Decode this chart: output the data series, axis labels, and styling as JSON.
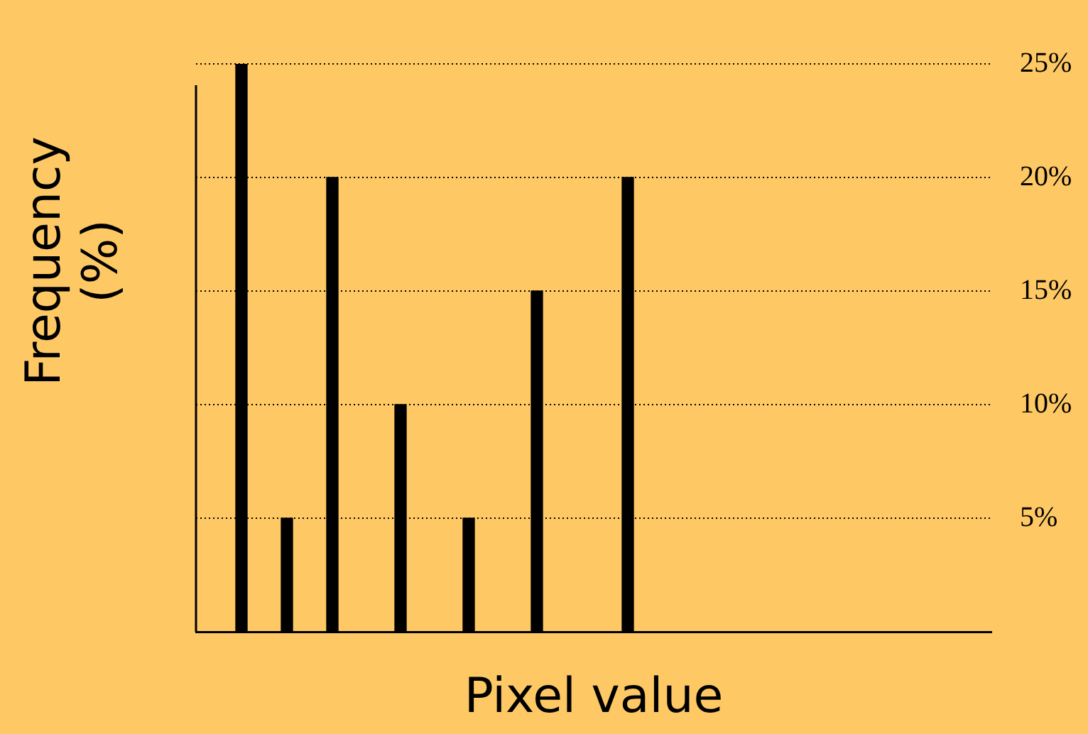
{
  "chart_data": {
    "type": "bar",
    "xlabel": "Pixel value",
    "ylabel": "Frequency (%)",
    "categories": [
      null,
      null,
      null,
      null,
      null,
      null,
      null,
      null,
      null,
      null,
      null,
      null,
      null,
      null,
      null,
      null,
      null,
      null,
      null,
      null,
      null,
      null,
      null,
      null,
      null,
      null,
      null,
      null,
      null,
      null,
      null,
      null,
      null,
      null,
      null,
      null
    ],
    "values": [
      null,
      null,
      25,
      null,
      5,
      null,
      20,
      null,
      null,
      10,
      null,
      null,
      5,
      null,
      null,
      15,
      null,
      null,
      null,
      20,
      null,
      null,
      null,
      null,
      null,
      null,
      null,
      null,
      null,
      null,
      null,
      null,
      null,
      null,
      null,
      null
    ],
    "color": "#000000",
    "ylim": [
      0,
      25
    ],
    "yticks": [
      {
        "value": 5,
        "label": "5%"
      },
      {
        "value": 10,
        "label": "10%"
      },
      {
        "value": 15,
        "label": "15%"
      },
      {
        "value": 20,
        "label": "20%"
      },
      {
        "value": 25,
        "label": "25%"
      }
    ],
    "grid": "y",
    "tick_labels": "y"
  }
}
